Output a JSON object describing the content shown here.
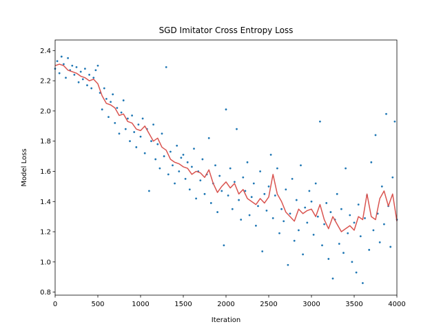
{
  "chart_data": {
    "type": "scatter",
    "title": "SGD Imitator Cross Entropy Loss",
    "x_label": "Iteration",
    "y_label": "Model Loss",
    "xlim": [
      0,
      4000
    ],
    "ylim": [
      0.78,
      2.47
    ],
    "xticks": [
      0,
      500,
      1000,
      1500,
      2000,
      2500,
      3000,
      3500,
      4000
    ],
    "yticks": [
      0.8,
      {
        "value": 1.0,
        "label": "1.0"
      },
      1.2,
      1.4,
      1.6,
      1.8,
      {
        "value": 2.0,
        "label": "2.0"
      },
      2.2,
      2.4
    ],
    "series": [
      {
        "kind": "scatter",
        "color": "#1f77b4",
        "x": [
          0,
          25,
          50,
          75,
          100,
          125,
          150,
          175,
          200,
          225,
          250,
          275,
          300,
          325,
          350,
          375,
          400,
          425,
          450,
          475,
          500,
          525,
          550,
          575,
          600,
          625,
          650,
          675,
          700,
          725,
          750,
          775,
          800,
          825,
          850,
          875,
          900,
          925,
          950,
          975,
          1000,
          1025,
          1050,
          1075,
          1100,
          1125,
          1150,
          1175,
          1200,
          1225,
          1250,
          1275,
          1300,
          1325,
          1350,
          1375,
          1400,
          1425,
          1450,
          1475,
          1500,
          1525,
          1550,
          1575,
          1600,
          1625,
          1650,
          1675,
          1700,
          1725,
          1750,
          1775,
          1800,
          1825,
          1850,
          1875,
          1900,
          1925,
          1950,
          1975,
          2000,
          2025,
          2050,
          2075,
          2100,
          2125,
          2150,
          2175,
          2200,
          2225,
          2250,
          2275,
          2300,
          2325,
          2350,
          2375,
          2400,
          2425,
          2450,
          2475,
          2500,
          2525,
          2550,
          2575,
          2600,
          2625,
          2650,
          2675,
          2700,
          2725,
          2750,
          2775,
          2800,
          2825,
          2850,
          2875,
          2900,
          2925,
          2950,
          2975,
          3000,
          3025,
          3050,
          3075,
          3100,
          3125,
          3150,
          3175,
          3200,
          3225,
          3250,
          3275,
          3300,
          3325,
          3350,
          3375,
          3400,
          3425,
          3450,
          3475,
          3500,
          3525,
          3550,
          3575,
          3600,
          3625,
          3650,
          3675,
          3700,
          3725,
          3750,
          3775,
          3800,
          3825,
          3850,
          3875,
          3900,
          3925,
          3950,
          3975,
          4000
        ],
        "values": [
          2.28,
          2.33,
          2.25,
          2.36,
          2.31,
          2.22,
          2.35,
          2.27,
          2.3,
          2.24,
          2.29,
          2.19,
          2.26,
          2.21,
          2.28,
          2.17,
          2.24,
          2.15,
          2.22,
          2.27,
          2.3,
          2.12,
          2.01,
          2.15,
          2.08,
          1.96,
          2.06,
          2.11,
          1.92,
          2.02,
          1.85,
          1.99,
          2.07,
          1.88,
          1.95,
          1.8,
          1.97,
          1.86,
          1.76,
          1.91,
          1.83,
          1.95,
          1.72,
          1.88,
          1.47,
          1.8,
          1.91,
          1.68,
          1.78,
          1.62,
          1.85,
          1.7,
          2.29,
          1.58,
          1.73,
          1.64,
          1.52,
          1.77,
          1.6,
          1.69,
          1.71,
          1.55,
          1.66,
          1.48,
          1.63,
          1.75,
          1.42,
          1.6,
          1.54,
          1.68,
          1.45,
          1.58,
          1.82,
          1.39,
          1.52,
          1.64,
          1.33,
          1.57,
          1.47,
          1.11,
          2.01,
          1.44,
          1.62,
          1.35,
          1.53,
          1.88,
          1.41,
          1.28,
          1.56,
          1.47,
          1.66,
          1.31,
          1.43,
          1.52,
          1.24,
          1.37,
          1.6,
          1.07,
          1.45,
          1.34,
          1.5,
          1.71,
          1.29,
          1.44,
          1.62,
          1.19,
          1.35,
          1.27,
          1.48,
          0.98,
          1.32,
          1.55,
          1.14,
          1.41,
          1.21,
          1.64,
          1.05,
          1.36,
          1.26,
          1.47,
          1.4,
          1.18,
          1.52,
          1.3,
          1.93,
          1.11,
          1.25,
          1.39,
          1.02,
          1.33,
          0.89,
          1.28,
          1.45,
          1.12,
          1.35,
          1.06,
          1.62,
          1.19,
          1.31,
          1.0,
          1.26,
          0.93,
          1.38,
          1.17,
          0.86,
          1.29,
          1.44,
          1.08,
          1.66,
          1.21,
          1.84,
          1.32,
          1.13,
          1.5,
          1.25,
          1.98,
          1.37,
          1.1,
          1.56,
          1.93,
          1.28
        ]
      },
      {
        "kind": "line",
        "color": "#d9534f",
        "x": [
          0,
          50,
          100,
          150,
          200,
          250,
          300,
          350,
          400,
          450,
          500,
          550,
          600,
          650,
          700,
          750,
          800,
          850,
          900,
          950,
          1000,
          1050,
          1100,
          1150,
          1200,
          1250,
          1300,
          1350,
          1400,
          1450,
          1500,
          1550,
          1600,
          1650,
          1700,
          1750,
          1800,
          1850,
          1900,
          1950,
          2000,
          2050,
          2100,
          2150,
          2200,
          2250,
          2300,
          2350,
          2400,
          2450,
          2500,
          2550,
          2600,
          2650,
          2700,
          2750,
          2800,
          2850,
          2900,
          2950,
          3000,
          3050,
          3100,
          3150,
          3200,
          3250,
          3300,
          3350,
          3400,
          3450,
          3500,
          3550,
          3600,
          3650,
          3700,
          3750,
          3800,
          3850,
          3900,
          3950,
          4000
        ],
        "values": [
          2.3,
          2.31,
          2.3,
          2.27,
          2.26,
          2.25,
          2.23,
          2.22,
          2.2,
          2.21,
          2.18,
          2.1,
          2.05,
          2.04,
          2.02,
          1.97,
          1.98,
          1.93,
          1.92,
          1.88,
          1.87,
          1.9,
          1.85,
          1.8,
          1.82,
          1.76,
          1.74,
          1.68,
          1.66,
          1.65,
          1.63,
          1.62,
          1.58,
          1.6,
          1.59,
          1.56,
          1.61,
          1.52,
          1.46,
          1.5,
          1.53,
          1.49,
          1.52,
          1.45,
          1.48,
          1.42,
          1.4,
          1.38,
          1.42,
          1.39,
          1.43,
          1.58,
          1.45,
          1.4,
          1.33,
          1.3,
          1.27,
          1.35,
          1.32,
          1.34,
          1.35,
          1.3,
          1.38,
          1.28,
          1.22,
          1.3,
          1.25,
          1.2,
          1.22,
          1.24,
          1.21,
          1.3,
          1.28,
          1.45,
          1.3,
          1.28,
          1.42,
          1.47,
          1.37,
          1.45,
          1.27
        ]
      }
    ]
  }
}
